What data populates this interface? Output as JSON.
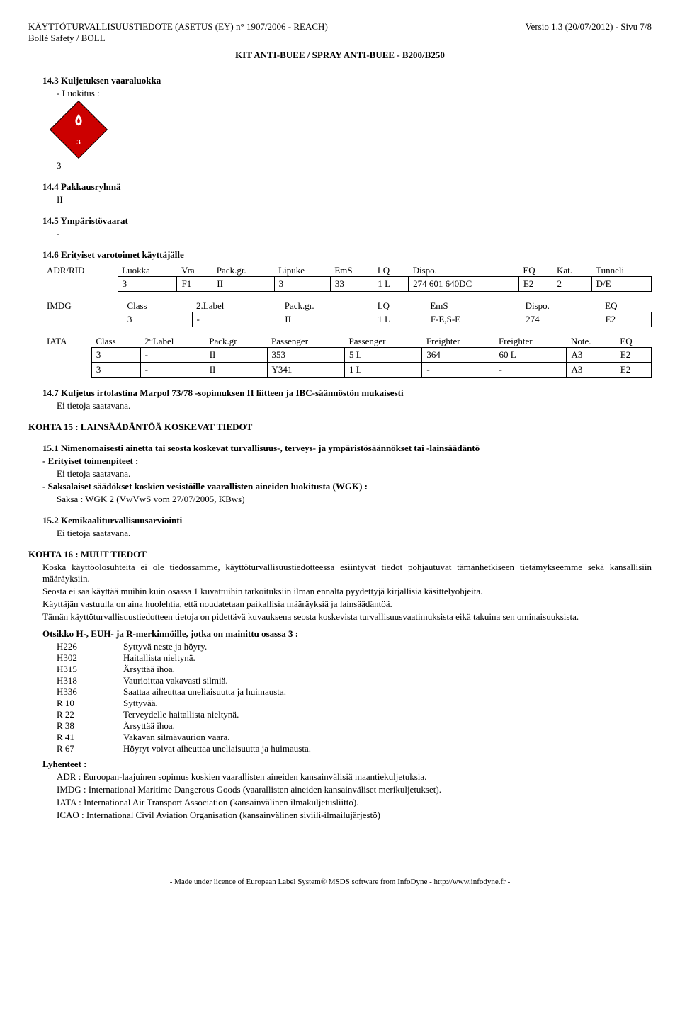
{
  "header": {
    "left1": "KÄYTTÖTURVALLISUUSTIEDOTE (ASETUS (EY) n° 1907/2006 - REACH)",
    "right1": "Versio 1.3 (20/07/2012) - Sivu 7/8",
    "left2": "Bollé Safety / BOLL",
    "center": "KIT ANTI-BUEE / SPRAY ANTI-BUEE - B200/B250"
  },
  "s14": {
    "h3": "14.3 Kuljetuksen vaaraluokka",
    "luokitus": "- Luokitus :",
    "placard_num": "3",
    "class3": "3",
    "h4": "14.4 Pakkausryhmä",
    "pg": "II",
    "h5": "14.5 Ympäristövaarat",
    "dash": "-",
    "h6": "14.6 Erityiset varotoimet käyttäjälle"
  },
  "adr": {
    "h": [
      "ADR/RID",
      "Luokka",
      "Vra",
      "Pack.gr.",
      "Lipuke",
      "EmS",
      "LQ",
      "Dispo.",
      "EQ",
      "Kat.",
      "Tunneli"
    ],
    "r": [
      "",
      "3",
      "F1",
      "II",
      "3",
      "33",
      "1 L",
      "274 601 640DC",
      "E2",
      "2",
      "D/E"
    ]
  },
  "imdg": {
    "h": [
      "IMDG",
      "Class",
      "2.Label",
      "Pack.gr.",
      "LQ",
      "EmS",
      "Dispo.",
      "EQ"
    ],
    "r": [
      "",
      "3",
      "-",
      "II",
      "1 L",
      "F-E,S-E",
      "274",
      "E2"
    ]
  },
  "iata": {
    "h": [
      "IATA",
      "Class",
      "2°Label",
      "Pack.gr",
      "Passenger",
      "Passenger",
      "Freighter",
      "Freighter",
      "Note.",
      "EQ"
    ],
    "r1": [
      "",
      "3",
      "-",
      "II",
      "353",
      "5 L",
      "364",
      "60 L",
      "A3",
      "E2"
    ],
    "r2": [
      "",
      "3",
      "-",
      "II",
      "Y341",
      "1 L",
      "-",
      "-",
      "A3",
      "E2"
    ]
  },
  "s14_7": {
    "title": "14.7 Kuljetus irtolastina Marpol 73/78 -sopimuksen II liitteen ja IBC-säännöstön mukaisesti",
    "txt": "Ei tietoja saatavana."
  },
  "k15": {
    "title": "KOHTA 15 : LAINSÄÄDÄNTÖÄ KOSKEVAT TIEDOT",
    "s1": "15.1 Nimenomaisesti ainetta tai seosta koskevat turvallisuus-, terveys- ja ympäristösäännökset tai -lainsäädäntö",
    "erityiset": "- Erityiset toimenpiteet :",
    "ei": "Ei tietoja saatavana.",
    "saksa_h": "- Saksalaiset säädökset koskien vesistöille vaarallisten aineiden luokitusta (WGK) :",
    "saksa": "Saksa : WGK 2 (VwVwS vom 27/07/2005, KBws)",
    "s2": "15.2 Kemikaaliturvallisuusarviointi"
  },
  "k16": {
    "title": "KOHTA 16 : MUUT TIEDOT",
    "p1": "Koska käyttöolosuhteita ei ole tiedossamme, käyttöturvallisuustiedotteessa esiintyvät tiedot pohjautuvat tämänhetkiseen tietämykseemme sekä kansallisiin määräyksiin.",
    "p2": "Seosta ei saa käyttää muihin kuin osassa 1 kuvattuihin tarkoituksiin ilman ennalta pyydettyjä kirjallisia käsittelyohjeita.",
    "p3": "Käyttäjän vastuulla on aina huolehtia, että noudatetaan paikallisia määräyksiä ja lainsäädäntöä.",
    "p4": "Tämän käyttöturvallisuustiedotteen tietoja on pidettävä kuvauksena seosta koskevista turvallisuusvaatimuksista eikä takuina sen ominaisuuksista.",
    "otsikko": "Otsikko H-, EUH- ja R-merkinnöille, jotka on mainittu osassa 3 :",
    "hr": [
      [
        "H226",
        "Syttyvä neste ja höyry."
      ],
      [
        "H302",
        "Haitallista nieltynä."
      ],
      [
        "H315",
        "Ärsyttää ihoa."
      ],
      [
        "H318",
        "Vaurioittaa vakavasti silmiä."
      ],
      [
        "H336",
        "Saattaa aiheuttaa uneliaisuutta ja huimausta."
      ],
      [
        "R 10",
        "Syttyvää."
      ],
      [
        "R 22",
        "Terveydelle haitallista nieltynä."
      ],
      [
        "R 38",
        "Ärsyttää ihoa."
      ],
      [
        "R 41",
        "Vakavan silmävaurion vaara."
      ],
      [
        "R 67",
        "Höyryt voivat aiheuttaa uneliaisuutta ja huimausta."
      ]
    ],
    "lyh_title": "Lyhenteet :",
    "lyh": [
      "ADR : Euroopan-laajuinen sopimus koskien vaarallisten aineiden kansainvälisiä maantiekuljetuksia.",
      "IMDG : International Maritime Dangerous Goods (vaarallisten aineiden kansainväliset merikuljetukset).",
      "IATA : International Air Transport Association (kansainvälinen ilmakuljetusliitto).",
      "ICAO : International Civil Aviation Organisation (kansainvälinen siviili-ilmailujärjestö)"
    ]
  },
  "footer": "- Made under licence of European Label System® MSDS software from InfoDyne  - http://www.infodyne.fr -"
}
